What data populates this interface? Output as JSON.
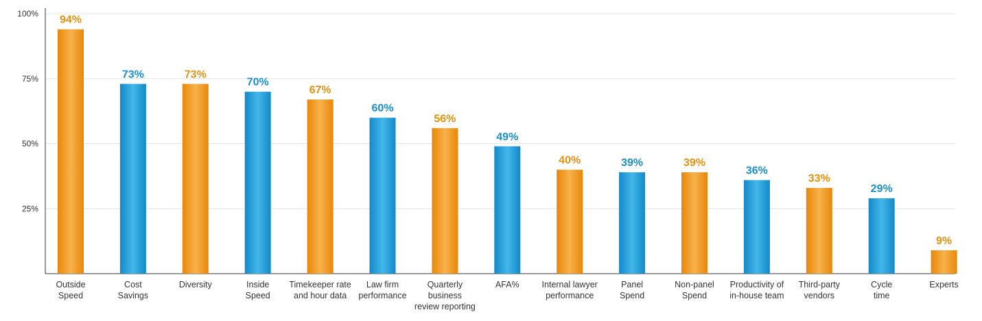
{
  "chart_data": {
    "type": "bar",
    "categories": [
      [
        "Outside",
        "Speed"
      ],
      [
        "Cost",
        "Savings"
      ],
      [
        "Diversity"
      ],
      [
        "Inside",
        "Speed"
      ],
      [
        "Timekeeper rate",
        "and hour data"
      ],
      [
        "Law firm",
        "performance"
      ],
      [
        "Quarterly",
        "business",
        "review reporting"
      ],
      [
        "AFA%"
      ],
      [
        "Internal lawyer",
        "performance"
      ],
      [
        "Panel",
        "Spend"
      ],
      [
        "Non-panel",
        "Spend"
      ],
      [
        "Productivity of",
        "in-house team"
      ],
      [
        "Third-party",
        "vendors"
      ],
      [
        "Cycle",
        "time"
      ],
      [
        "Experts"
      ]
    ],
    "values": [
      94,
      73,
      73,
      70,
      67,
      60,
      56,
      49,
      40,
      39,
      39,
      36,
      33,
      29,
      9
    ],
    "data_labels": [
      "94%",
      "73%",
      "73%",
      "70%",
      "67%",
      "60%",
      "56%",
      "49%",
      "40%",
      "39%",
      "39%",
      "36%",
      "33%",
      "29%",
      "9%"
    ],
    "bar_colors": [
      "orange",
      "blue",
      "orange",
      "blue",
      "orange",
      "blue",
      "orange",
      "blue",
      "orange",
      "blue",
      "orange",
      "blue",
      "orange",
      "blue",
      "orange"
    ],
    "y_ticks": [
      {
        "value": 100,
        "label": "100%"
      },
      {
        "value": 75,
        "label": "75%"
      },
      {
        "value": 50,
        "label": "50%"
      },
      {
        "value": 25,
        "label": "25%"
      }
    ],
    "ylim": [
      0,
      100
    ],
    "grid": true,
    "colors": {
      "orange": "#F39A1B",
      "orange_light": "#F7B24A",
      "blue": "#1B9AD6",
      "blue_light": "#3FB4E8",
      "orange_label": "#E8900F",
      "blue_label": "#1A8FCC",
      "grid": "#E4E4E4",
      "axis": "#333333"
    }
  }
}
